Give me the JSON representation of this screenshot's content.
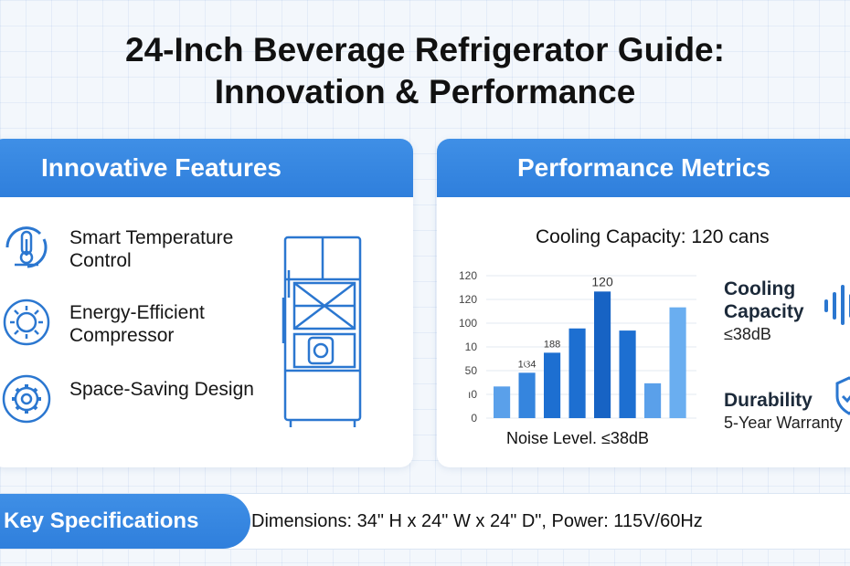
{
  "title": {
    "line1": "24-Inch Beverage Refrigerator Guide:",
    "line2": "Innovation & Performance"
  },
  "features_panel": {
    "header": "Innovative Features",
    "items": [
      {
        "label": "Smart Temperature Control",
        "icon": "thermometer-icon"
      },
      {
        "label": "Energy-Efficient Compressor",
        "icon": "sun-gear-icon"
      },
      {
        "label": "Space-Saving Design",
        "icon": "gear-icon"
      }
    ],
    "illustration": "refrigerator-icon"
  },
  "metrics_panel": {
    "header": "Performance Metrics",
    "subtitle": "Cooling Capacity: 120 cans",
    "side": [
      {
        "heading": "Cooling Capacity",
        "sub": "≤38dB",
        "icon": "sound-wave-icon"
      },
      {
        "heading": "Durability",
        "sub": "5-Year Warranty",
        "icon": "shield-icon"
      }
    ]
  },
  "chart_data": {
    "type": "bar",
    "values": [
      30,
      43,
      62,
      85,
      120,
      83,
      33,
      105
    ],
    "y_tick_labels": [
      "120",
      "120",
      "100",
      "10",
      "50",
      "ı0",
      "0"
    ],
    "data_labels": [
      {
        "bar": 1,
        "text": "1ଓ4"
      },
      {
        "bar": 2,
        "text": "188"
      },
      {
        "bar": 4,
        "text": "120"
      }
    ],
    "xlabel": "Noise Level. ≤38dB",
    "ylim": [
      0,
      135
    ],
    "grid": true,
    "colors": [
      "#5aa0ea",
      "#3585de",
      "#1d6fd1",
      "#1d6fd1",
      "#1763c4",
      "#1d6fd1",
      "#5aa0ea",
      "#6aaef0"
    ]
  },
  "specs": {
    "label": "Key Specifications",
    "text": "Dimensions: 34\" H x 24\" W x 24\" D\",  Power: 115V/60Hz"
  },
  "colors": {
    "accent": "#2f7fdc",
    "icon_blue": "#2b77d0"
  }
}
